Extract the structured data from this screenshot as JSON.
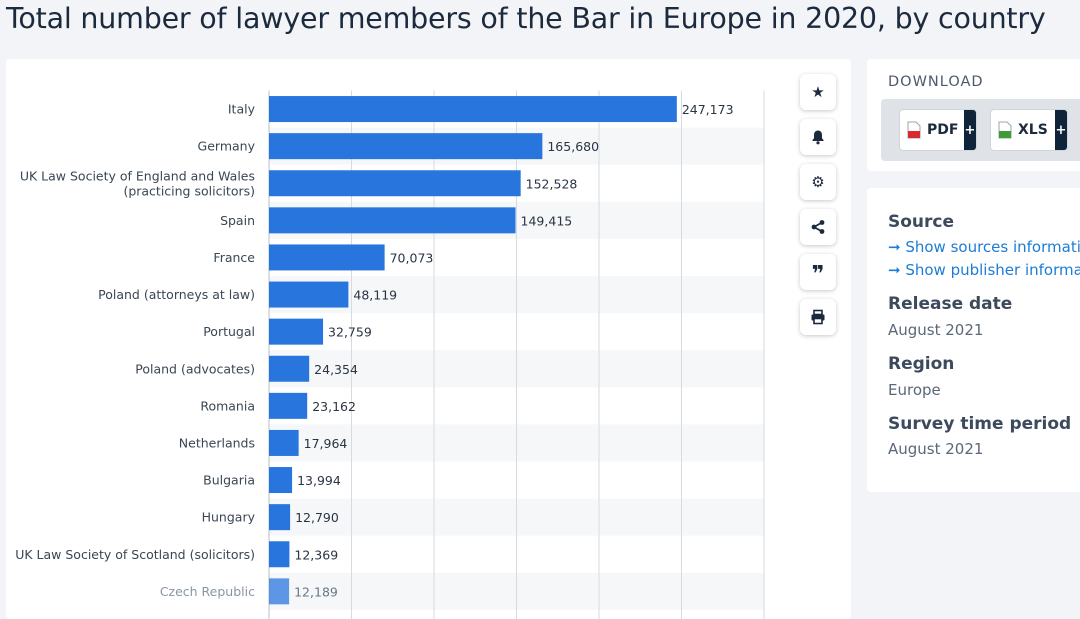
{
  "page": {
    "title": "Total number of lawyer members of the Bar in Europe in 2020, by country"
  },
  "toolbar": {
    "buttons": [
      {
        "name": "favorite",
        "icon": "star-icon",
        "glyph": "★"
      },
      {
        "name": "notification",
        "icon": "bell-icon",
        "glyph": "🔔"
      },
      {
        "name": "settings",
        "icon": "gear-icon",
        "glyph": "⚙"
      },
      {
        "name": "share",
        "icon": "share-icon",
        "glyph": "share"
      },
      {
        "name": "cite",
        "icon": "quote-icon",
        "glyph": "❞"
      },
      {
        "name": "print",
        "icon": "print-icon",
        "glyph": "🖶"
      }
    ]
  },
  "download": {
    "title": "DOWNLOAD",
    "pdf_label": "PDF",
    "xls_label": "XLS",
    "plus": "+"
  },
  "info": {
    "source_heading": "Source",
    "source_link": "Show sources information",
    "publisher_link": "Show publisher information",
    "release_heading": "Release date",
    "release_value": "August 2021",
    "region_heading": "Region",
    "region_value": "Europe",
    "survey_heading": "Survey time period",
    "survey_value": "August 2021"
  },
  "colors": {
    "bar": "#2876dd",
    "accent": "#1d7cd6",
    "row_stripe": "#f6f7f9",
    "grid": "#d6dbe1"
  },
  "chart_data": {
    "type": "bar",
    "orientation": "horizontal",
    "title": "Total number of lawyer members of the Bar in Europe in 2020, by country",
    "xlabel": "",
    "ylabel": "",
    "xlim": [
      0,
      300000
    ],
    "grid": true,
    "categories": [
      "Italy",
      "Germany",
      "UK Law Society of England and Wales\n(practicing solicitors)",
      "Spain",
      "France",
      "Poland (attorneys at law)",
      "Portugal",
      "Poland (advocates)",
      "Romania",
      "Netherlands",
      "Bulgaria",
      "Hungary",
      "UK Law Society of Scotland (solicitors)",
      "Czech Republic"
    ],
    "values": [
      247173,
      165680,
      152528,
      149415,
      70073,
      48119,
      32759,
      24354,
      23162,
      17964,
      13994,
      12790,
      12369,
      12189
    ],
    "value_labels": [
      "247,173",
      "165,680",
      "152,528",
      "149,415",
      "70,073",
      "48,119",
      "32,759",
      "24,354",
      "23,162",
      "17,964",
      "13,994",
      "12,790",
      "12,369",
      "12,189"
    ]
  }
}
